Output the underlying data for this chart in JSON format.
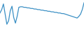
{
  "y_values": [
    22,
    28,
    38,
    20,
    2,
    8,
    26,
    34,
    14,
    4,
    16,
    32,
    33,
    33,
    32,
    32,
    31,
    31,
    30,
    30,
    29,
    29,
    28,
    28,
    27,
    27,
    26,
    26,
    25,
    25,
    24,
    24,
    23,
    23,
    22,
    22,
    21,
    21,
    20,
    19,
    18,
    17,
    16,
    15,
    14,
    13,
    16,
    20,
    28,
    40
  ],
  "line_color": "#3a8fc4",
  "linewidth": 0.9,
  "background_color": "#ffffff",
  "ylim_min": -10,
  "ylim_max": 45
}
